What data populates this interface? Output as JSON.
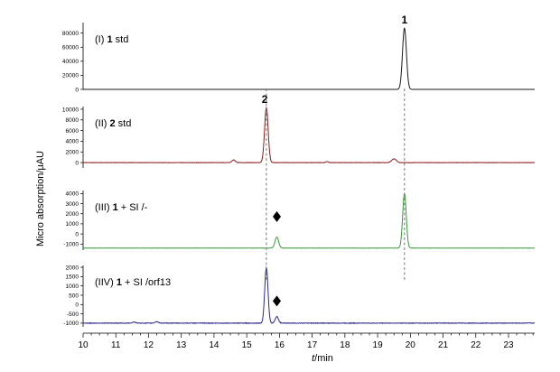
{
  "chart_data": {
    "type": "line",
    "ylabel": "Micro absorption/μAU",
    "xlabel": "t/min",
    "xlim": [
      10,
      23.8
    ],
    "x_ticks": [
      "10",
      "11",
      "12",
      "13",
      "14",
      "15",
      "16",
      "17",
      "18",
      "19",
      "20",
      "21",
      "22",
      "23"
    ],
    "reference_lines_x": [
      15.6,
      19.82
    ],
    "marker_symbol": "♦",
    "panels": [
      {
        "label_prefix": "(I) ",
        "label_bold": "1",
        "label_suffix": " std",
        "color": "#1a1a1a",
        "ylim": [
          0,
          95000
        ],
        "y_ticks": [
          "0",
          "20000",
          "40000",
          "60000",
          "80000"
        ],
        "y_tick_values": [
          0,
          20000,
          40000,
          60000,
          80000
        ],
        "baseline": 0,
        "noise": 0,
        "peaks": [
          {
            "x": 19.82,
            "height": 87000,
            "width": 0.06
          }
        ],
        "peak_labels": [
          {
            "text": "1",
            "x": 19.82,
            "y": 87000
          }
        ],
        "markers": []
      },
      {
        "label_prefix": "(II) ",
        "label_bold": "2",
        "label_suffix": " std",
        "color": "#8b1a1a",
        "ylim": [
          -1000,
          10500
        ],
        "y_ticks": [
          "0",
          "2000",
          "4000",
          "6000",
          "8000",
          "10000"
        ],
        "y_tick_values": [
          0,
          2000,
          4000,
          6000,
          8000,
          10000
        ],
        "baseline": 0,
        "noise": 60,
        "peaks": [
          {
            "x": 15.6,
            "height": 10300,
            "width": 0.055
          },
          {
            "x": 14.6,
            "height": 500,
            "width": 0.05
          },
          {
            "x": 19.5,
            "height": 700,
            "width": 0.07
          },
          {
            "x": 17.45,
            "height": 180,
            "width": 0.04
          }
        ],
        "peak_labels": [
          {
            "text": "2",
            "x": 15.55,
            "y": 10300
          }
        ],
        "markers": []
      },
      {
        "label_prefix": "(III) ",
        "label_bold": "1",
        "label_suffix": " + SI /-",
        "color": "#3a9a3a",
        "ylim": [
          -1600,
          4300
        ],
        "y_ticks": [
          "-1000",
          "0",
          "1000",
          "2000",
          "3000",
          "4000"
        ],
        "y_tick_values": [
          -1000,
          0,
          1000,
          2000,
          3000,
          4000
        ],
        "baseline": -1400,
        "noise": 25,
        "peaks": [
          {
            "x": 19.82,
            "height": 5400,
            "width": 0.055
          },
          {
            "x": 15.92,
            "height": 1100,
            "width": 0.055
          }
        ],
        "peak_labels": [],
        "markers": [
          {
            "x": 15.92,
            "y": 1000
          }
        ]
      },
      {
        "label_prefix": "(IIV) ",
        "label_bold": "1",
        "label_suffix": " + SI /orf13",
        "color": "#2a2a8c",
        "ylim": [
          -1200,
          2100
        ],
        "y_ticks": [
          "-1000",
          "-500",
          "0",
          "500",
          "1000",
          "1500",
          "2000"
        ],
        "y_tick_values": [
          -1000,
          -500,
          0,
          500,
          1000,
          1500,
          2000
        ],
        "baseline": -1000,
        "noise": 30,
        "peaks": [
          {
            "x": 15.6,
            "height": 3000,
            "width": 0.05
          },
          {
            "x": 15.92,
            "height": 350,
            "width": 0.05
          },
          {
            "x": 12.25,
            "height": 80,
            "width": 0.05
          },
          {
            "x": 11.55,
            "height": 60,
            "width": 0.05
          }
        ],
        "peak_labels": [],
        "markers": [
          {
            "x": 15.92,
            "y": -200
          }
        ]
      }
    ]
  }
}
